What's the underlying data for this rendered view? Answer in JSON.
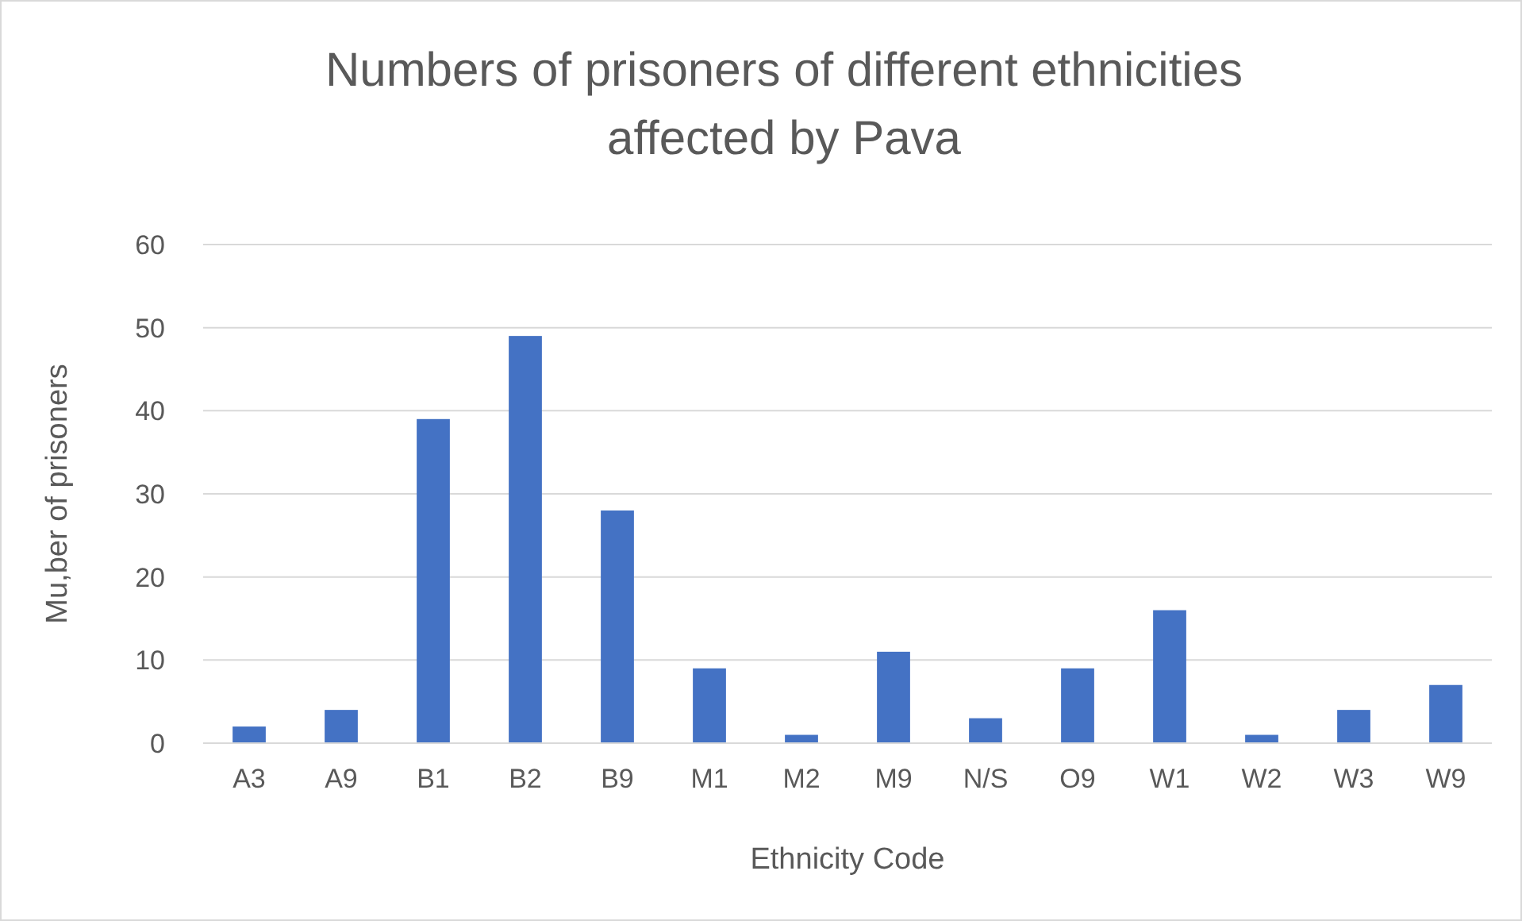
{
  "chart_data": {
    "type": "bar",
    "title": "Numbers of prisoners of different ethnicities affected by Pava",
    "xlabel": "Ethnicity Code",
    "ylabel": "Mu,ber of prisoners",
    "categories": [
      "A3",
      "A9",
      "B1",
      "B2",
      "B9",
      "M1",
      "M2",
      "M9",
      "N/S",
      "O9",
      "W1",
      "W2",
      "W3",
      "W9"
    ],
    "values": [
      2,
      4,
      39,
      49,
      28,
      9,
      1,
      11,
      3,
      9,
      16,
      1,
      4,
      7
    ],
    "color": "#4472c4",
    "ylim": [
      0,
      60
    ],
    "yticks": [
      0,
      10,
      20,
      30,
      40,
      50,
      60
    ],
    "grid": "y"
  }
}
